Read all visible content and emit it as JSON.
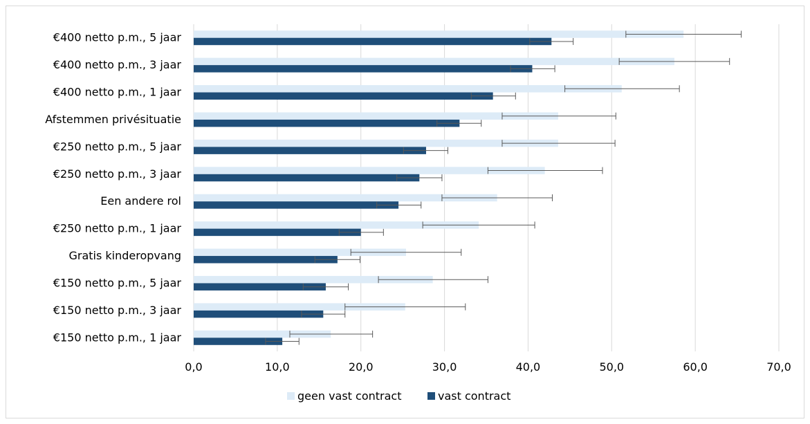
{
  "chart_data": {
    "type": "bar",
    "orientation": "horizontal",
    "categories": [
      "€400 netto p.m., 5 jaar",
      "€400 netto p.m., 3 jaar",
      "€400 netto p.m., 1 jaar",
      "Afstemmen privésituatie",
      "€250 netto p.m., 5 jaar",
      "€250 netto p.m., 3 jaar",
      "Een andere rol",
      "€250 netto p.m., 1 jaar",
      "Gratis kinderopvang",
      "€150 netto p.m., 5 jaar",
      "€150 netto p.m., 3 jaar",
      "€150 netto p.m., 1 jaar"
    ],
    "series": [
      {
        "name": "geen vast contract",
        "color": "#ddebf7",
        "values": [
          58.6,
          57.5,
          51.2,
          43.6,
          43.6,
          42.0,
          36.3,
          34.1,
          25.4,
          28.6,
          25.3,
          16.4
        ],
        "error_low": [
          51.7,
          50.9,
          44.4,
          36.9,
          36.9,
          35.2,
          29.7,
          27.4,
          18.8,
          22.1,
          18.1,
          11.5
        ],
        "error_high": [
          65.5,
          64.1,
          58.1,
          50.5,
          50.4,
          48.9,
          42.9,
          40.8,
          32.0,
          35.2,
          32.5,
          21.4
        ]
      },
      {
        "name": "vast contract",
        "color": "#1f4e79",
        "values": [
          42.8,
          40.5,
          35.8,
          31.8,
          27.8,
          27.0,
          24.5,
          20.0,
          17.2,
          15.8,
          15.5,
          10.6
        ],
        "error_low": [
          40.2,
          37.9,
          33.2,
          29.1,
          25.1,
          24.3,
          21.9,
          17.4,
          14.5,
          13.1,
          12.9,
          8.6
        ],
        "error_high": [
          45.4,
          43.2,
          38.5,
          34.4,
          30.4,
          29.7,
          27.2,
          22.7,
          19.9,
          18.5,
          18.1,
          12.6
        ]
      }
    ],
    "x_ticks": [
      "0,0",
      "10,0",
      "20,0",
      "30,0",
      "40,0",
      "50,0",
      "60,0",
      "70,0"
    ],
    "xlim": [
      0,
      70
    ],
    "grid": "vertical",
    "legend_position": "bottom"
  }
}
